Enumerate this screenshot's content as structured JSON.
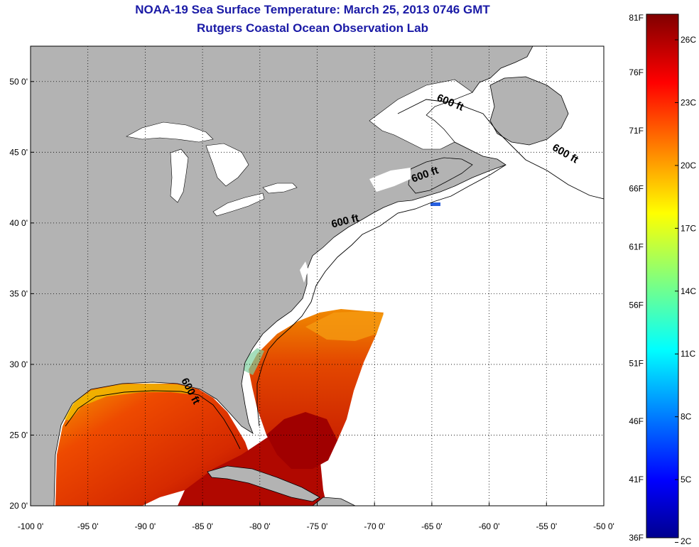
{
  "title": "NOAA-19 Sea Surface Temperature:  March 25, 2013 0746 GMT",
  "subtitle": "Rutgers Coastal Ocean Observation Lab",
  "map": {
    "lon_range": [
      -100,
      -50
    ],
    "lat_range": [
      20,
      52.5
    ],
    "grid": true,
    "lon_ticks": [
      {
        "value": -100,
        "label": "-100 0'"
      },
      {
        "value": -95,
        "label": "-95 0'"
      },
      {
        "value": -90,
        "label": "-90 0'"
      },
      {
        "value": -85,
        "label": "-85 0'"
      },
      {
        "value": -80,
        "label": "-80 0'"
      },
      {
        "value": -75,
        "label": "-75 0'"
      },
      {
        "value": -70,
        "label": "-70 0'"
      },
      {
        "value": -65,
        "label": "-65 0'"
      },
      {
        "value": -60,
        "label": "-60 0'"
      },
      {
        "value": -55,
        "label": "-55 0'"
      },
      {
        "value": -50,
        "label": "-50 0'"
      }
    ],
    "lat_ticks": [
      {
        "value": 50,
        "label": "50 0'"
      },
      {
        "value": 45,
        "label": "45 0'"
      },
      {
        "value": 40,
        "label": "40 0'"
      },
      {
        "value": 35,
        "label": "35 0'"
      },
      {
        "value": 30,
        "label": "30 0'"
      },
      {
        "value": 25,
        "label": "25 0'"
      },
      {
        "value": 20,
        "label": "20 0'"
      }
    ],
    "contour_labels": [
      {
        "text": "600 ft",
        "lon": -63.5,
        "lat": 48.3
      },
      {
        "text": "600 ft",
        "lon": -53.5,
        "lat": 44.7
      },
      {
        "text": "600 ft",
        "lon": -65.5,
        "lat": 43.2
      },
      {
        "text": "600 ft",
        "lon": -72.5,
        "lat": 39.9
      },
      {
        "text": "600 ft",
        "lon": -86.3,
        "lat": 28.0
      }
    ],
    "land_color": "#b3b3b3",
    "no_data_color": "#ffffff"
  },
  "colorbar": {
    "vmin_f": 36,
    "vmax_f": 81,
    "f_labels": [
      {
        "value": 81,
        "label": "81F"
      },
      {
        "value": 76,
        "label": "76F"
      },
      {
        "value": 71,
        "label": "71F"
      },
      {
        "value": 66,
        "label": "66F"
      },
      {
        "value": 61,
        "label": "61F"
      },
      {
        "value": 56,
        "label": "56F"
      },
      {
        "value": 51,
        "label": "51F"
      },
      {
        "value": 46,
        "label": "46F"
      },
      {
        "value": 41,
        "label": "41F"
      },
      {
        "value": 36,
        "label": "36F"
      }
    ],
    "c_labels": [
      {
        "value_c": 26,
        "label": "26C"
      },
      {
        "value_c": 23,
        "label": "23C"
      },
      {
        "value_c": 20,
        "label": "20C"
      },
      {
        "value_c": 17,
        "label": "17C"
      },
      {
        "value_c": 14,
        "label": "14C"
      },
      {
        "value_c": 11,
        "label": "11C"
      },
      {
        "value_c": 8,
        "label": "8C"
      },
      {
        "value_c": 5,
        "label": "5C"
      },
      {
        "value_c": 2,
        "label": "2C"
      }
    ],
    "colormap": "jet"
  }
}
